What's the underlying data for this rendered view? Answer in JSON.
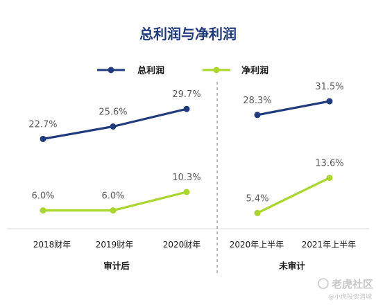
{
  "chart_data": {
    "type": "line",
    "title": "总利润与净利润",
    "categories": [
      "2018财年",
      "2019财年",
      "2020财年",
      "2020年上半年",
      "2021年上半年"
    ],
    "groups": [
      {
        "label": "审计后",
        "categories": [
          "2018财年",
          "2019财年",
          "2020财年"
        ]
      },
      {
        "label": "未审计",
        "categories": [
          "2020年上半年",
          "2021年上半年"
        ]
      }
    ],
    "series": [
      {
        "name": "总利润",
        "color": "#1f3a7d",
        "values": [
          22.7,
          25.6,
          29.7,
          28.3,
          31.5
        ],
        "labels": [
          "22.7%",
          "25.6%",
          "29.7%",
          "28.3%",
          "31.5%"
        ]
      },
      {
        "name": "净利润",
        "color": "#a9d62a",
        "values": [
          6.0,
          6.0,
          10.3,
          5.4,
          13.6
        ],
        "labels": [
          "6.0%",
          "6.0%",
          "10.3%",
          "5.4%",
          "13.6%"
        ]
      }
    ],
    "legend_position": "top",
    "divider": "dashed line between 2020财年 and 2020年上半年"
  },
  "watermark": {
    "main": "老虎社区",
    "sub": "@小虎投资潜城"
  }
}
